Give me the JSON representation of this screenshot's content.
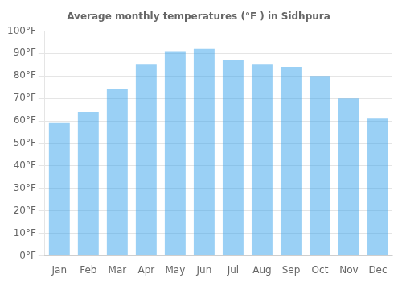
{
  "chart_data": {
    "type": "bar",
    "title": "Average monthly temperatures (°F ) in Sidhpura",
    "categories": [
      "Jan",
      "Feb",
      "Mar",
      "Apr",
      "May",
      "Jun",
      "Jul",
      "Aug",
      "Sep",
      "Oct",
      "Nov",
      "Dec"
    ],
    "values": [
      59,
      64,
      74,
      85,
      91,
      92,
      87,
      85,
      84,
      80,
      70,
      61
    ],
    "ylim": [
      0,
      100
    ],
    "yticks": [
      {
        "value": 0,
        "label": "0°F"
      },
      {
        "value": 10,
        "label": "10°F"
      },
      {
        "value": 20,
        "label": "20°F"
      },
      {
        "value": 30,
        "label": "30°F"
      },
      {
        "value": 40,
        "label": "40°F"
      },
      {
        "value": 50,
        "label": "50°F"
      },
      {
        "value": 60,
        "label": "60°F"
      },
      {
        "value": 70,
        "label": "70°F"
      },
      {
        "value": 80,
        "label": "80°F"
      },
      {
        "value": 90,
        "label": "90°F"
      },
      {
        "value": 100,
        "label": "100°F"
      }
    ],
    "grid": true
  }
}
